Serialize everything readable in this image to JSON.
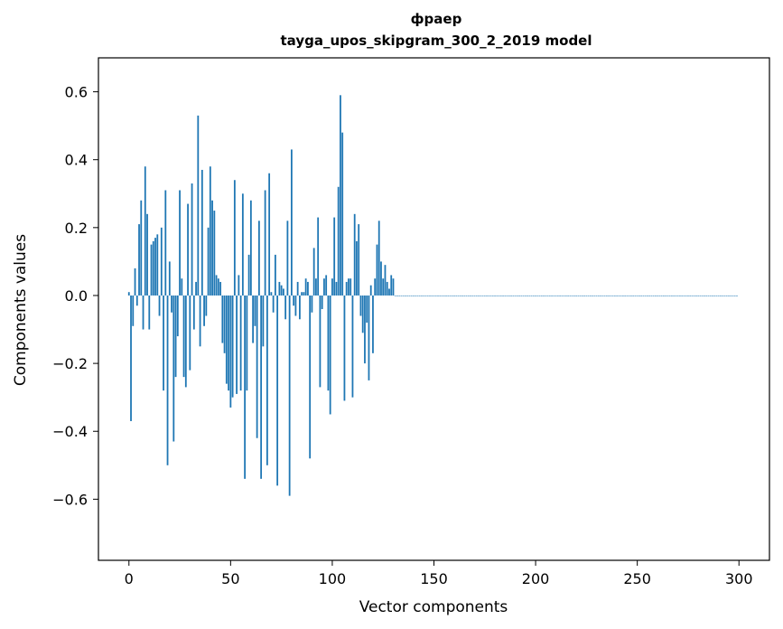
{
  "chart_data": {
    "type": "bar",
    "title": "фраер",
    "subtitle": "tayga_upos_skipgram_300_2_2019 model",
    "xlabel": "Vector components",
    "ylabel": "Components values",
    "xlim": [
      -15,
      315
    ],
    "ylim": [
      -0.78,
      0.7
    ],
    "xticks": [
      0,
      50,
      100,
      150,
      200,
      250,
      300
    ],
    "xtick_labels": [
      "0",
      "50",
      "100",
      "150",
      "200",
      "250",
      "300"
    ],
    "yticks": [
      -0.6,
      -0.4,
      -0.2,
      0.0,
      0.2,
      0.4,
      0.6
    ],
    "ytick_labels": [
      "−0.6",
      "−0.4",
      "−0.2",
      "0.0",
      "0.2",
      "0.4",
      "0.6"
    ],
    "grid": false,
    "color": "#1f77b4",
    "x": [
      0,
      1,
      2,
      3,
      4,
      5,
      6,
      7,
      8,
      9,
      10,
      11,
      12,
      13,
      14,
      15,
      16,
      17,
      18,
      19,
      20,
      21,
      22,
      23,
      24,
      25,
      26,
      27,
      28,
      29,
      30,
      31,
      32,
      33,
      34,
      35,
      36,
      37,
      38,
      39,
      40,
      41,
      42,
      43,
      44,
      45,
      46,
      47,
      48,
      49,
      50,
      51,
      52,
      53,
      54,
      55,
      56,
      57,
      58,
      59,
      60,
      61,
      62,
      63,
      64,
      65,
      66,
      67,
      68,
      69,
      70,
      71,
      72,
      73,
      74,
      75,
      76,
      77,
      78,
      79,
      80,
      81,
      82,
      83,
      84,
      85,
      86,
      87,
      88,
      89,
      90,
      91,
      92,
      93,
      94,
      95,
      96,
      97,
      98,
      99,
      100,
      101,
      102,
      103,
      104,
      105,
      106,
      107,
      108,
      109,
      110,
      111,
      112,
      113,
      114,
      115,
      116,
      117,
      118,
      119,
      120,
      121,
      122,
      123,
      124,
      125,
      126,
      127,
      128,
      129,
      130,
      131,
      132,
      133,
      134,
      135,
      136,
      137,
      138,
      139,
      140,
      141,
      142,
      143,
      144,
      145,
      146,
      147,
      148,
      149,
      150,
      151,
      152,
      153,
      154,
      155,
      156,
      157,
      158,
      159,
      160,
      161,
      162,
      163,
      164,
      165,
      166,
      167,
      168,
      169,
      170,
      171,
      172,
      173,
      174,
      175,
      176,
      177,
      178,
      179,
      180,
      181,
      182,
      183,
      184,
      185,
      186,
      187,
      188,
      189,
      190,
      191,
      192,
      193,
      194,
      195,
      196,
      197,
      198,
      199,
      200,
      201,
      202,
      203,
      204,
      205,
      206,
      207,
      208,
      209,
      210,
      211,
      212,
      213,
      214,
      215,
      216,
      217,
      218,
      219,
      220,
      221,
      222,
      223,
      224,
      225,
      226,
      227,
      228,
      229,
      230,
      231,
      232,
      233,
      234,
      235,
      236,
      237,
      238,
      239,
      240,
      241,
      242,
      243,
      244,
      245,
      246,
      247,
      248,
      249,
      250,
      251,
      252,
      253,
      254,
      255,
      256,
      257,
      258,
      259,
      260,
      261,
      262,
      263,
      264,
      265,
      266,
      267,
      268,
      269,
      270,
      271,
      272,
      273,
      274,
      275,
      276,
      277,
      278,
      279,
      280,
      281,
      282,
      283,
      284,
      285,
      286,
      287,
      288,
      289,
      290,
      291,
      292,
      293,
      294,
      295,
      296,
      297,
      298,
      299
    ],
    "values": [
      0.01,
      -0.37,
      -0.09,
      0.08,
      -0.03,
      0.21,
      0.28,
      -0.1,
      0.38,
      0.24,
      -0.1,
      0.15,
      0.16,
      0.17,
      0.18,
      -0.06,
      0.2,
      -0.28,
      0.31,
      -0.5,
      0.1,
      -0.05,
      -0.43,
      -0.24,
      -0.12,
      0.31,
      0.05,
      -0.24,
      -0.27,
      0.27,
      -0.22,
      0.33,
      -0.1,
      0.04,
      0.53,
      -0.15,
      0.37,
      -0.09,
      -0.06,
      0.2,
      0.38,
      0.28,
      0.25,
      0.06,
      0.05,
      0.04,
      -0.14,
      -0.17,
      -0.26,
      -0.28,
      -0.33,
      -0.3,
      0.34,
      -0.29,
      0.06,
      -0.28,
      0.3,
      -0.54,
      -0.28,
      0.12,
      0.28,
      -0.14,
      -0.09,
      -0.42,
      0.22,
      -0.54,
      -0.15,
      0.31,
      -0.5,
      0.36,
      0.01,
      -0.05,
      0.12,
      -0.56,
      0.04,
      0.03,
      0.02,
      -0.07,
      0.22,
      -0.59,
      0.43,
      -0.03,
      -0.06,
      0.04,
      -0.07,
      0.01,
      0.01,
      0.05,
      0.04,
      -0.48,
      -0.05,
      0.14,
      0.05,
      0.23,
      -0.27,
      -0.04,
      0.05,
      0.06,
      -0.28,
      -0.35,
      0.05,
      0.23,
      0.04,
      0.32,
      0.59,
      0.48,
      -0.31,
      0.04,
      0.05,
      0.05,
      -0.3,
      0.24,
      0.16,
      0.21,
      -0.06,
      -0.11,
      -0.2,
      -0.08,
      -0.25,
      0.03,
      -0.17,
      0.05,
      0.15,
      0.22,
      0.1,
      0.05,
      0.09,
      0.04,
      0.02,
      0.06,
      0.05,
      0.0,
      0.0,
      0.0,
      0.0,
      0.0,
      0.0,
      0.0,
      0.0,
      0.0,
      0.0,
      0.0,
      0.0,
      0.0,
      0.0,
      0.0,
      0.0,
      0.0,
      0.0,
      0.0,
      0.0,
      0.0,
      0.0,
      0.0,
      0.0,
      0.0,
      0.0,
      0.0,
      0.0,
      0.0,
      0.0,
      0.0,
      0.0,
      0.0,
      0.0,
      0.0,
      0.0,
      0.0,
      0.0,
      0.0,
      0.0,
      0.0,
      0.0,
      0.0,
      0.0,
      0.0,
      0.0,
      0.0,
      0.0,
      0.0,
      0.0,
      0.0,
      0.0,
      0.0,
      0.0,
      0.0,
      0.0,
      0.0,
      0.0,
      0.0,
      0.0,
      0.0,
      0.0,
      0.0,
      0.0,
      0.0,
      0.0,
      0.0,
      0.0,
      0.0,
      0.0,
      0.0,
      0.0,
      0.0,
      0.0,
      0.0,
      0.0,
      0.0,
      0.0,
      0.0,
      0.0,
      0.0,
      0.0,
      0.0,
      0.0,
      0.0,
      0.0,
      0.0,
      0.0,
      0.0,
      0.0,
      0.0,
      0.0,
      0.0,
      0.0,
      0.0,
      0.0,
      0.0,
      0.0,
      0.0,
      0.0,
      0.0,
      0.0,
      0.0,
      0.0,
      0.0,
      0.0,
      0.0,
      0.0,
      0.0,
      0.0,
      0.0,
      0.0,
      0.0,
      0.0,
      0.0,
      0.0,
      0.0,
      0.0,
      0.0,
      0.0,
      0.0,
      0.0,
      0.0,
      0.0,
      0.0,
      0.0,
      0.0,
      0.0,
      0.0,
      0.0,
      0.0,
      0.0,
      0.0,
      0.0,
      0.0,
      0.0,
      0.0,
      0.0,
      0.0,
      0.0,
      0.0,
      0.0,
      0.0,
      0.0,
      0.0,
      0.0,
      0.0,
      0.0,
      0.0,
      0.0,
      0.0,
      0.0,
      0.0,
      0.0,
      0.0,
      0.0,
      0.0,
      0.0,
      0.0,
      0.0,
      0.0,
      0.0,
      0.0,
      0.0,
      0.0,
      0.0,
      0.0,
      0.0,
      0.0
    ]
  }
}
